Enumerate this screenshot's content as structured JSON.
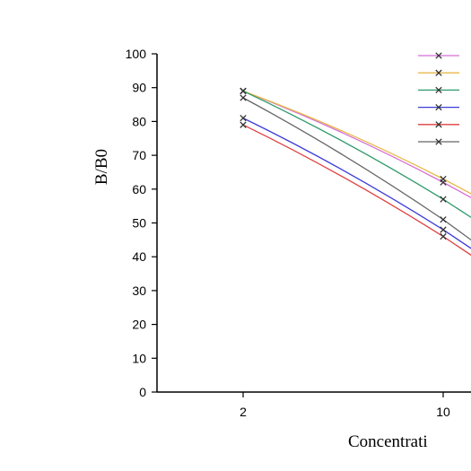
{
  "chart_data": {
    "type": "line",
    "xlabel": "Concentrati",
    "ylabel": "B/B0",
    "x_scale": "log",
    "ylim": [
      0,
      100
    ],
    "y_ticks": [
      "0",
      "10",
      "20",
      "30",
      "40",
      "50",
      "60",
      "70",
      "80",
      "90",
      "100"
    ],
    "x_ticks": [
      {
        "value": 2,
        "label": "2"
      },
      {
        "value": 10,
        "label": "10"
      }
    ],
    "grid": false,
    "legend_position": "top-right",
    "series": [
      {
        "color": "#d46fd4",
        "points": [
          [
            2,
            89
          ],
          [
            10,
            62
          ]
        ]
      },
      {
        "color": "#e8b84a",
        "points": [
          [
            2,
            89
          ],
          [
            10,
            63
          ]
        ]
      },
      {
        "color": "#2e9a6a",
        "points": [
          [
            2,
            89
          ],
          [
            10,
            57
          ]
        ]
      },
      {
        "color": "#3c3cd8",
        "points": [
          [
            2,
            81
          ],
          [
            10,
            48
          ]
        ]
      },
      {
        "color": "#e04040",
        "points": [
          [
            2,
            79
          ],
          [
            10,
            46
          ]
        ]
      },
      {
        "color": "#666666",
        "points": [
          [
            2,
            87
          ],
          [
            10,
            51
          ]
        ]
      }
    ]
  }
}
